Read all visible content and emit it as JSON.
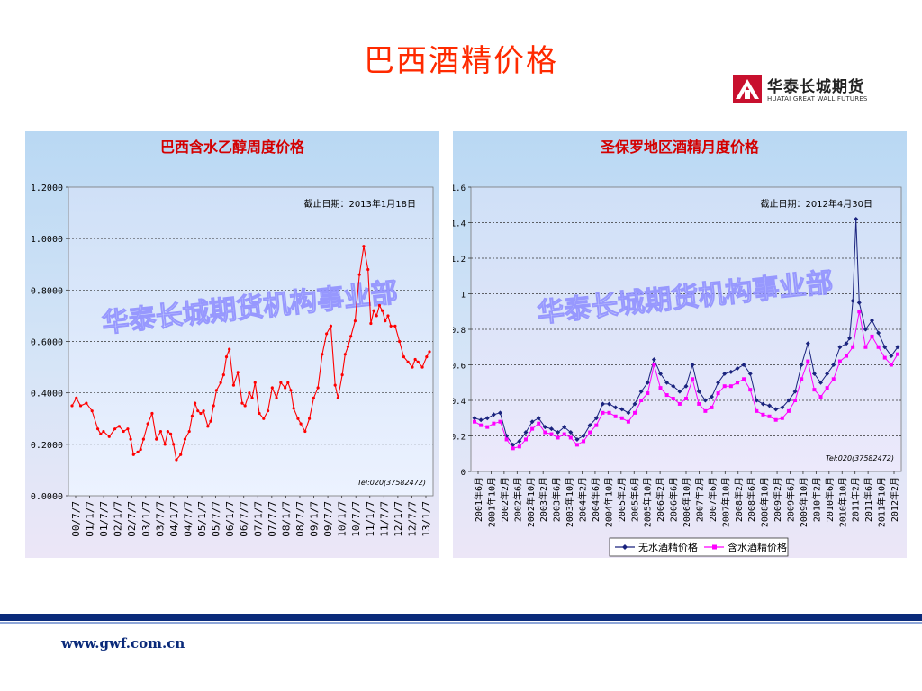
{
  "slide": {
    "title": "巴西酒精价格",
    "footer_url": "www.gwf.com.cn"
  },
  "logo": {
    "name_cn": "华泰长城期货",
    "name_en": "HUATAI GREAT WALL FUTURES"
  },
  "colors": {
    "title": "#ff2a00",
    "footer_bar": "#0a2a7a",
    "series_red": "#ff0000",
    "series_navy": "#1a237e",
    "series_magenta": "#ff00ff",
    "watermark": "#9090ff"
  },
  "chart_data": [
    {
      "type": "line",
      "title": "巴西含水乙醇周度价格",
      "annotation": "截止日期：2013年1月18日",
      "watermark": "华泰长城期货机构事业部",
      "tel": "Tel:020(37582472)",
      "ylim": [
        0,
        1.2
      ],
      "y_ticks": [
        "0.0000",
        "0.2000",
        "0.4000",
        "0.6000",
        "0.8000",
        "1.0000",
        "1.2000"
      ],
      "x_ticks": [
        "00/7/7",
        "01/1/7",
        "01/7/7",
        "02/1/7",
        "02/7/7",
        "03/1/7",
        "03/7/7",
        "04/1/7",
        "04/7/7",
        "05/1/7",
        "05/7/7",
        "06/1/7",
        "06/7/7",
        "07/1/7",
        "07/7/7",
        "08/1/7",
        "08/7/7",
        "09/1/7",
        "09/7/7",
        "10/1/7",
        "10/7/7",
        "11/1/7",
        "11/7/7",
        "12/1/7",
        "12/7/7",
        "13/1/7"
      ],
      "grid": true,
      "series": [
        {
          "color": "#ff0000",
          "x": [
            0.0,
            0.3,
            0.6,
            1.0,
            1.4,
            1.8,
            2.0,
            2.2,
            2.6,
            3.0,
            3.3,
            3.6,
            3.9,
            4.1,
            4.3,
            4.6,
            4.8,
            5.0,
            5.3,
            5.6,
            5.9,
            6.2,
            6.5,
            6.7,
            6.9,
            7.1,
            7.3,
            7.6,
            7.9,
            8.2,
            8.4,
            8.6,
            8.8,
            9.0,
            9.2,
            9.5,
            9.7,
            9.9,
            10.1,
            10.4,
            10.6,
            10.8,
            11.0,
            11.3,
            11.6,
            11.9,
            12.1,
            12.4,
            12.6,
            12.8,
            13.1,
            13.4,
            13.7,
            14.0,
            14.3,
            14.6,
            14.9,
            15.1,
            15.3,
            15.5,
            15.8,
            16.0,
            16.3,
            16.6,
            16.9,
            17.2,
            17.5,
            17.8,
            18.1,
            18.4,
            18.6,
            18.9,
            19.1,
            19.3,
            19.5,
            19.8,
            20.1,
            20.4,
            20.7,
            20.9,
            21.1,
            21.3,
            21.5,
            21.7,
            21.9,
            22.1,
            22.3,
            22.6,
            22.9,
            23.2,
            23.5,
            23.8,
            24.0,
            24.2,
            24.5,
            24.8,
            25.0
          ],
          "values": [
            0.35,
            0.38,
            0.35,
            0.36,
            0.33,
            0.26,
            0.24,
            0.25,
            0.23,
            0.26,
            0.27,
            0.25,
            0.26,
            0.22,
            0.16,
            0.17,
            0.18,
            0.22,
            0.28,
            0.32,
            0.22,
            0.25,
            0.2,
            0.25,
            0.24,
            0.2,
            0.14,
            0.16,
            0.22,
            0.25,
            0.31,
            0.36,
            0.33,
            0.32,
            0.33,
            0.27,
            0.29,
            0.35,
            0.41,
            0.44,
            0.47,
            0.54,
            0.57,
            0.43,
            0.48,
            0.36,
            0.35,
            0.4,
            0.38,
            0.44,
            0.32,
            0.3,
            0.33,
            0.42,
            0.38,
            0.44,
            0.42,
            0.44,
            0.41,
            0.34,
            0.3,
            0.28,
            0.25,
            0.3,
            0.38,
            0.42,
            0.55,
            0.63,
            0.66,
            0.43,
            0.38,
            0.47,
            0.55,
            0.58,
            0.62,
            0.68,
            0.86,
            0.97,
            0.88,
            0.67,
            0.72,
            0.7,
            0.74,
            0.72,
            0.68,
            0.7,
            0.66,
            0.66,
            0.6,
            0.54,
            0.52,
            0.5,
            0.53,
            0.52,
            0.5,
            0.54,
            0.56
          ]
        }
      ]
    },
    {
      "type": "line",
      "title": "圣保罗地区酒精月度价格",
      "annotation": "截止日期：2012年4月30日",
      "watermark": "华泰长城期货机构事业部",
      "tel": "Tel:020(37582472)",
      "ylim": [
        0,
        1.6
      ],
      "y_ticks": [
        "0",
        "0.2",
        "0.4",
        "0.6",
        "0.8",
        "1",
        "1.2",
        "1.4",
        "1.6"
      ],
      "x_ticks": [
        "2001年6月",
        "2001年10月",
        "2002年2月",
        "2002年6月",
        "2002年10月",
        "2003年2月",
        "2003年6月",
        "2003年10月",
        "2004年2月",
        "2004年6月",
        "2004年10月",
        "2005年2月",
        "2005年6月",
        "2005年10月",
        "2006年2月",
        "2006年6月",
        "2006年10月",
        "2007年2月",
        "2007年6月",
        "2007年10月",
        "2008年2月",
        "2008年6月",
        "2008年10月",
        "2009年2月",
        "2009年6月",
        "2009年10月",
        "2010年2月",
        "2010年6月",
        "2010年10月",
        "2011年2月",
        "2011年6月",
        "2011年10月",
        "2012年2月"
      ],
      "grid": true,
      "legend": "bottom",
      "series": [
        {
          "name": "无水酒精价格",
          "color": "#1a237e",
          "x": [
            0,
            0.5,
            1,
            1.5,
            2,
            2.5,
            3,
            3.5,
            4,
            4.5,
            5,
            5.5,
            6,
            6.5,
            7,
            7.5,
            8,
            8.5,
            9,
            9.5,
            10,
            10.5,
            11,
            11.5,
            12,
            12.5,
            13,
            13.5,
            14,
            14.5,
            15,
            15.5,
            16,
            16.5,
            17,
            17.5,
            18,
            18.5,
            19,
            19.5,
            20,
            20.5,
            21,
            21.5,
            22,
            22.5,
            23,
            23.5,
            24,
            24.5,
            25,
            25.5,
            26,
            26.5,
            27,
            27.5,
            28,
            28.5,
            29,
            29.25,
            29.5,
            29.75,
            30,
            30.5,
            31,
            31.5,
            32,
            32.5,
            33
          ],
          "values": [
            0.3,
            0.29,
            0.3,
            0.32,
            0.33,
            0.2,
            0.15,
            0.17,
            0.22,
            0.28,
            0.3,
            0.25,
            0.24,
            0.22,
            0.25,
            0.22,
            0.18,
            0.2,
            0.26,
            0.3,
            0.38,
            0.38,
            0.36,
            0.35,
            0.33,
            0.38,
            0.45,
            0.5,
            0.63,
            0.55,
            0.5,
            0.48,
            0.45,
            0.48,
            0.6,
            0.45,
            0.4,
            0.42,
            0.5,
            0.55,
            0.56,
            0.58,
            0.6,
            0.55,
            0.4,
            0.38,
            0.37,
            0.35,
            0.36,
            0.4,
            0.45,
            0.6,
            0.72,
            0.55,
            0.5,
            0.55,
            0.6,
            0.7,
            0.72,
            0.75,
            0.96,
            1.42,
            0.95,
            0.8,
            0.85,
            0.78,
            0.7,
            0.65,
            0.7
          ]
        },
        {
          "name": "含水酒精价格",
          "color": "#ff00ff",
          "x": [
            0,
            0.5,
            1,
            1.5,
            2,
            2.5,
            3,
            3.5,
            4,
            4.5,
            5,
            5.5,
            6,
            6.5,
            7,
            7.5,
            8,
            8.5,
            9,
            9.5,
            10,
            10.5,
            11,
            11.5,
            12,
            12.5,
            13,
            13.5,
            14,
            14.5,
            15,
            15.5,
            16,
            16.5,
            17,
            17.5,
            18,
            18.5,
            19,
            19.5,
            20,
            20.5,
            21,
            21.5,
            22,
            22.5,
            23,
            23.5,
            24,
            24.5,
            25,
            25.5,
            26,
            26.5,
            27,
            27.5,
            28,
            28.5,
            29,
            29.5,
            30,
            30.5,
            31,
            31.5,
            32,
            32.5,
            33
          ],
          "values": [
            0.28,
            0.26,
            0.25,
            0.27,
            0.28,
            0.18,
            0.13,
            0.14,
            0.18,
            0.24,
            0.27,
            0.22,
            0.21,
            0.19,
            0.21,
            0.19,
            0.15,
            0.17,
            0.22,
            0.26,
            0.33,
            0.33,
            0.31,
            0.3,
            0.28,
            0.33,
            0.4,
            0.44,
            0.6,
            0.47,
            0.43,
            0.41,
            0.38,
            0.41,
            0.52,
            0.38,
            0.34,
            0.36,
            0.44,
            0.48,
            0.48,
            0.5,
            0.52,
            0.46,
            0.34,
            0.32,
            0.31,
            0.29,
            0.3,
            0.34,
            0.4,
            0.52,
            0.62,
            0.46,
            0.42,
            0.47,
            0.52,
            0.62,
            0.65,
            0.7,
            0.9,
            0.7,
            0.76,
            0.7,
            0.64,
            0.6,
            0.66
          ]
        }
      ]
    }
  ]
}
